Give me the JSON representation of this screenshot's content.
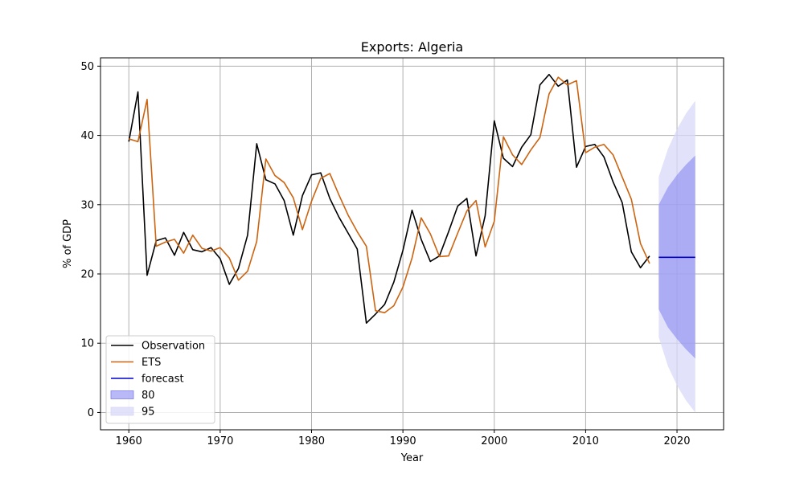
{
  "chart_data": {
    "type": "line",
    "title": "Exports: Algeria",
    "xlabel": "Year",
    "ylabel": "% of GDP",
    "xlim": [
      1956.9,
      2025.1
    ],
    "ylim": [
      -2.5,
      51.2
    ],
    "xticks": [
      1960,
      1970,
      1980,
      1990,
      2000,
      2010,
      2020
    ],
    "yticks": [
      0,
      10,
      20,
      30,
      40,
      50
    ],
    "grid": true,
    "legend_position": "lower-left",
    "series": [
      {
        "name": "Observation",
        "kind": "line",
        "color": "#000000",
        "x": [
          1960,
          1961,
          1962,
          1963,
          1964,
          1965,
          1966,
          1967,
          1968,
          1969,
          1970,
          1971,
          1972,
          1973,
          1974,
          1975,
          1976,
          1977,
          1978,
          1979,
          1980,
          1981,
          1982,
          1983,
          1984,
          1985,
          1986,
          1987,
          1988,
          1989,
          1990,
          1991,
          1992,
          1993,
          1994,
          1995,
          1996,
          1997,
          1998,
          1999,
          2000,
          2001,
          2002,
          2003,
          2004,
          2005,
          2006,
          2007,
          2008,
          2009,
          2010,
          2011,
          2012,
          2013,
          2014,
          2015,
          2016,
          2017
        ],
        "y": [
          39.1,
          46.3,
          19.8,
          24.8,
          25.2,
          22.7,
          26.0,
          23.5,
          23.2,
          23.8,
          22.2,
          18.5,
          20.8,
          25.6,
          38.8,
          33.6,
          33.0,
          30.6,
          25.6,
          31.3,
          34.3,
          34.6,
          30.9,
          28.2,
          25.9,
          23.6,
          12.9,
          14.2,
          15.6,
          18.8,
          23.4,
          29.2,
          25.0,
          21.8,
          22.6,
          26.1,
          29.8,
          30.9,
          22.6,
          28.4,
          42.1,
          36.7,
          35.5,
          38.3,
          40.1,
          47.3,
          48.8,
          47.1,
          48.0,
          35.4,
          38.4,
          38.7,
          36.9,
          33.3,
          30.3,
          23.2,
          20.9,
          22.6
        ]
      },
      {
        "name": "ETS",
        "kind": "line",
        "color": "#cc6410",
        "x": [
          1960,
          1961,
          1962,
          1963,
          1964,
          1965,
          1966,
          1967,
          1968,
          1969,
          1970,
          1971,
          1972,
          1973,
          1974,
          1975,
          1976,
          1977,
          1978,
          1979,
          1980,
          1981,
          1982,
          1983,
          1984,
          1985,
          1986,
          1987,
          1988,
          1989,
          1990,
          1991,
          1992,
          1993,
          1994,
          1995,
          1996,
          1997,
          1998,
          1999,
          2000,
          2001,
          2002,
          2003,
          2004,
          2005,
          2006,
          2007,
          2008,
          2009,
          2010,
          2011,
          2012,
          2013,
          2014,
          2015,
          2016,
          2017
        ],
        "y": [
          39.5,
          39.1,
          45.2,
          24.0,
          24.6,
          25.0,
          23.0,
          25.6,
          23.7,
          23.3,
          23.8,
          22.3,
          19.1,
          20.4,
          24.7,
          36.6,
          34.2,
          33.2,
          31.0,
          26.4,
          30.5,
          33.8,
          34.5,
          31.4,
          28.5,
          26.1,
          24.0,
          14.7,
          14.4,
          15.4,
          18.1,
          22.3,
          28.1,
          25.8,
          22.5,
          22.6,
          25.9,
          29.1,
          30.6,
          23.9,
          27.6,
          39.8,
          37.2,
          35.8,
          37.9,
          39.7,
          46.0,
          48.4,
          47.3,
          47.9,
          37.5,
          38.3,
          38.7,
          37.2,
          34.0,
          30.8,
          24.4,
          21.5
        ]
      },
      {
        "name": "forecast",
        "kind": "line",
        "color": "#0000cc",
        "x": [
          2018,
          2022
        ],
        "y": [
          22.4,
          22.4
        ]
      },
      {
        "name": "80",
        "kind": "band",
        "color": "#8080f0",
        "x": [
          2018,
          2019,
          2020,
          2021,
          2022
        ],
        "lower": [
          14.9,
          12.3,
          10.6,
          9.1,
          7.8
        ],
        "upper": [
          30.0,
          32.5,
          34.3,
          35.8,
          37.1
        ]
      },
      {
        "name": "95",
        "kind": "band",
        "color": "#d8d8f8",
        "x": [
          2018,
          2019,
          2020,
          2021,
          2022
        ],
        "lower": [
          10.9,
          6.7,
          3.9,
          1.7,
          0.0
        ],
        "upper": [
          34.0,
          38.0,
          40.9,
          43.2,
          45.0
        ]
      }
    ]
  }
}
